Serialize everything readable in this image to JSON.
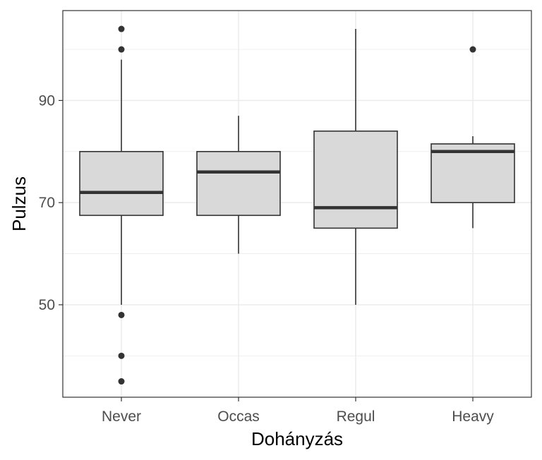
{
  "chart_data": {
    "type": "boxplot",
    "title": "",
    "xlabel": "Dohányzás",
    "ylabel": "Pulzus",
    "categories": [
      "Never",
      "Occas",
      "Regul",
      "Heavy"
    ],
    "ylim": [
      31.9,
      107.6
    ],
    "y_ticks_labeled": [
      50,
      70,
      90
    ],
    "y_minor_gridlines": [
      40,
      60,
      80,
      100
    ],
    "grid": true,
    "legend": "none",
    "boxes": [
      {
        "category": "Never",
        "whisker_low": 50,
        "q1": 67.5,
        "median": 72,
        "q3": 80,
        "whisker_high": 98,
        "outliers": [
          104,
          100,
          48,
          40,
          35
        ]
      },
      {
        "category": "Occas",
        "whisker_low": 60,
        "q1": 67.5,
        "median": 76,
        "q3": 80,
        "whisker_high": 87,
        "outliers": []
      },
      {
        "category": "Regul",
        "whisker_low": 50,
        "q1": 65,
        "median": 69,
        "q3": 84,
        "whisker_high": 104,
        "outliers": []
      },
      {
        "category": "Heavy",
        "whisker_low": 65,
        "q1": 70,
        "median": 80,
        "q3": 81.5,
        "whisker_high": 83,
        "outliers": [
          100
        ]
      }
    ],
    "colors": {
      "box_fill": "#d9d9d9",
      "box_stroke": "#333333",
      "grid": "#ebebeb",
      "panel_border": "#333333",
      "point": "#333333"
    }
  }
}
